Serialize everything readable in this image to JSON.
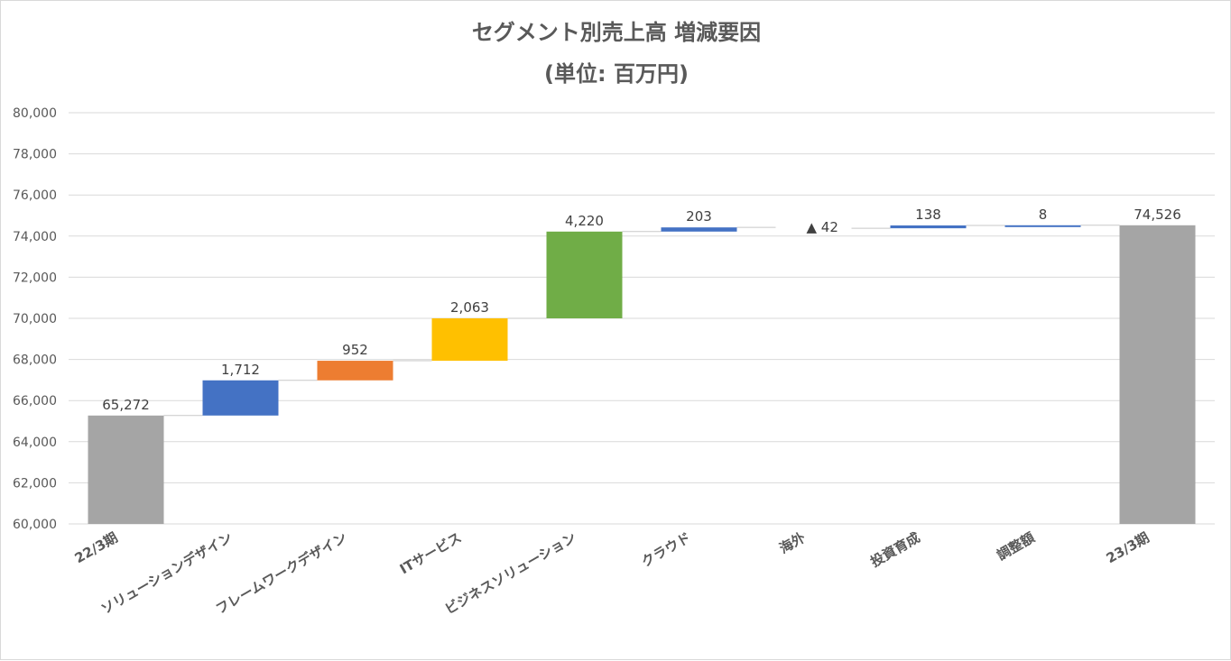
{
  "chart_data": {
    "type": "bar",
    "variant": "waterfall",
    "title": "セグメント別売上高 増減要因",
    "subtitle": "(単位: 百万円)",
    "categories": [
      "22/3期",
      "ソリューションデザイン",
      "フレームワークデザイン",
      "ITサービス",
      "ビジネスソリューション",
      "クラウド",
      "海外",
      "投資育成",
      "調整額",
      "23/3期"
    ],
    "values": [
      65272,
      1712,
      952,
      2063,
      4220,
      203,
      -42,
      138,
      8,
      74526
    ],
    "value_labels": [
      "65,272",
      "1,712",
      "952",
      "2,063",
      "4,220",
      "203",
      "▲ 42",
      "138",
      "8",
      "74,526"
    ],
    "kinds": [
      "total",
      "delta",
      "delta",
      "delta",
      "delta",
      "delta",
      "delta",
      "delta",
      "delta",
      "total"
    ],
    "colors": [
      "#a5a5a5",
      "#4472c4",
      "#ed7d31",
      "#ffc000",
      "#70ad47",
      "#4472c4",
      "#595959",
      "#4472c4",
      "#4472c4",
      "#a5a5a5"
    ],
    "ylim": [
      60000,
      80000
    ],
    "yticks": [
      "60,000",
      "62,000",
      "64,000",
      "66,000",
      "68,000",
      "70,000",
      "72,000",
      "74,000",
      "76,000",
      "78,000",
      "80,000"
    ],
    "xlabel": "",
    "ylabel": "",
    "grid": true,
    "legend": "none"
  }
}
